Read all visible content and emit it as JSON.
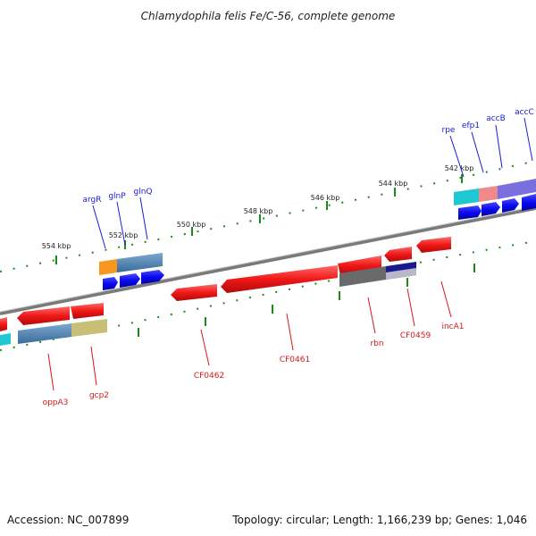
{
  "title": "Chlamydophila felis Fe/C-56, complete genome",
  "footer": {
    "accession": "Accession: NC_007899",
    "topology": "Topology: circular; Length: 1,166,239 bp; Genes: 1,046"
  },
  "scale_labels": [
    "554 kbp",
    "552 kbp",
    "550 kbp",
    "548 kbp",
    "546 kbp",
    "544 kbp",
    "542 kbp"
  ],
  "gene_labels_top": [
    "argR",
    "glnP",
    "glnQ",
    "rpe",
    "efp1",
    "accB",
    "accC"
  ],
  "gene_labels_bottom": [
    "oppA3",
    "gcp2",
    "CF0462",
    "CF0461",
    "rbn",
    "CF0459",
    "incA1"
  ],
  "colors": {
    "backbone": "#8a8a8a",
    "tick": "#1a8a1a",
    "cds_red": "#f01818",
    "blue_arrow": "#0a0af0",
    "label_blue": "#1a1adf",
    "label_red": "#d61818",
    "orange": "#f7961e",
    "steel": "#4a7fb0",
    "khaki": "#c8be78",
    "cyan": "#1fc7d2",
    "pink": "#f08a8a",
    "purple": "#7b6fe0",
    "gray": "#6a6a6a",
    "navy": "#1a1a90"
  }
}
